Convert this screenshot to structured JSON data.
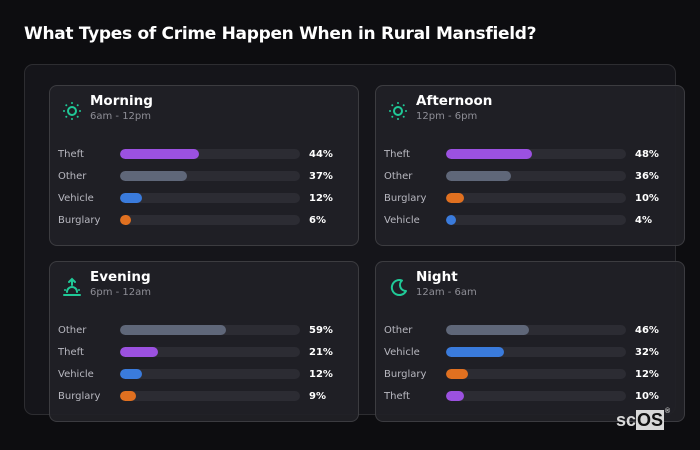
{
  "title": "What Types of Crime Happen When in Rural Mansfield?",
  "colors": {
    "Theft": "#9b51e0",
    "Other": "#5f6779",
    "Vehicle": "#3a7bdc",
    "Burglary": "#e07020",
    "icon": "#20c997"
  },
  "cards": [
    {
      "title": "Morning",
      "subtitle": "6am - 12pm",
      "icon": "sun-icon",
      "rows": [
        {
          "label": "Theft",
          "value": 44,
          "text": "44%"
        },
        {
          "label": "Other",
          "value": 37,
          "text": "37%"
        },
        {
          "label": "Vehicle",
          "value": 12,
          "text": "12%"
        },
        {
          "label": "Burglary",
          "value": 6,
          "text": "6%"
        }
      ]
    },
    {
      "title": "Afternoon",
      "subtitle": "12pm - 6pm",
      "icon": "sun-icon",
      "rows": [
        {
          "label": "Theft",
          "value": 48,
          "text": "48%"
        },
        {
          "label": "Other",
          "value": 36,
          "text": "36%"
        },
        {
          "label": "Burglary",
          "value": 10,
          "text": "10%"
        },
        {
          "label": "Vehicle",
          "value": 4,
          "text": "4%"
        }
      ]
    },
    {
      "title": "Evening",
      "subtitle": "6pm - 12am",
      "icon": "sunset-icon",
      "rows": [
        {
          "label": "Other",
          "value": 59,
          "text": "59%"
        },
        {
          "label": "Theft",
          "value": 21,
          "text": "21%"
        },
        {
          "label": "Vehicle",
          "value": 12,
          "text": "12%"
        },
        {
          "label": "Burglary",
          "value": 9,
          "text": "9%"
        }
      ]
    },
    {
      "title": "Night",
      "subtitle": "12am - 6am",
      "icon": "moon-icon",
      "rows": [
        {
          "label": "Other",
          "value": 46,
          "text": "46%"
        },
        {
          "label": "Vehicle",
          "value": 32,
          "text": "32%"
        },
        {
          "label": "Burglary",
          "value": 12,
          "text": "12%"
        },
        {
          "label": "Theft",
          "value": 10,
          "text": "10%"
        }
      ]
    }
  ],
  "logo": {
    "sc": "sc",
    "os": "OS",
    "reg": "®"
  },
  "chart_data": {
    "type": "bar",
    "orientation": "horizontal",
    "title": "What Types of Crime Happen When in Rural Mansfield?",
    "xlabel": "",
    "ylabel": "",
    "xlim": [
      0,
      100
    ],
    "grid": false,
    "legend": "none",
    "panels": [
      {
        "name": "Morning",
        "subtitle": "6am - 12pm",
        "categories": [
          "Theft",
          "Other",
          "Vehicle",
          "Burglary"
        ],
        "values": [
          44,
          37,
          12,
          6
        ]
      },
      {
        "name": "Afternoon",
        "subtitle": "12pm - 6pm",
        "categories": [
          "Theft",
          "Other",
          "Burglary",
          "Vehicle"
        ],
        "values": [
          48,
          36,
          10,
          4
        ]
      },
      {
        "name": "Evening",
        "subtitle": "6pm - 12am",
        "categories": [
          "Other",
          "Theft",
          "Vehicle",
          "Burglary"
        ],
        "values": [
          59,
          21,
          12,
          9
        ]
      },
      {
        "name": "Night",
        "subtitle": "12am - 6am",
        "categories": [
          "Other",
          "Vehicle",
          "Burglary",
          "Theft"
        ],
        "values": [
          46,
          32,
          12,
          10
        ]
      }
    ],
    "series_colors": {
      "Theft": "#9b51e0",
      "Other": "#5f6779",
      "Vehicle": "#3a7bdc",
      "Burglary": "#e07020"
    }
  }
}
